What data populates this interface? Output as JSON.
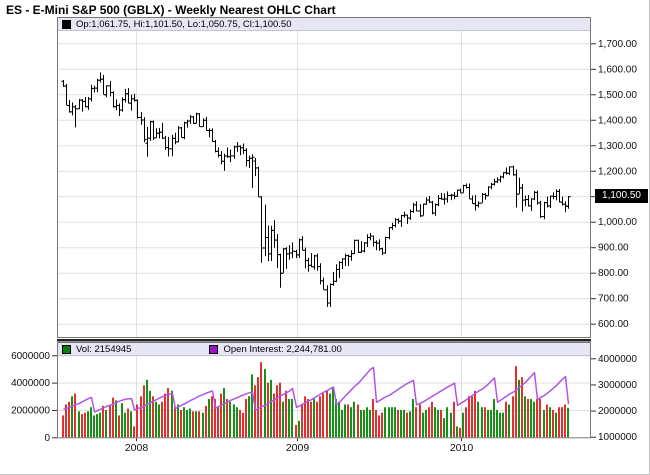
{
  "app": {
    "title": "ES - E-Mini S&P 500 (GBLX) - Weekly Nearest OHLC Chart"
  },
  "price_panel": {
    "legend": "Op:1,061.75, Hi:1,101.50, Lo:1,050.75, Cl:1,100.50",
    "legend_swatch_color": "#000000",
    "last_price_label": "1,100.50",
    "last_price_value": 1100.5,
    "y_ticks": [
      {
        "value": 1700,
        "label": "1,700.00"
      },
      {
        "value": 1600,
        "label": "1,600.00"
      },
      {
        "value": 1500,
        "label": "1,500.00"
      },
      {
        "value": 1400,
        "label": "1,400.00"
      },
      {
        "value": 1300,
        "label": "1,300.00"
      },
      {
        "value": 1200,
        "label": "1,200.00"
      },
      {
        "value": 1000,
        "label": "1,000.00"
      },
      {
        "value": 900,
        "label": "900.00"
      },
      {
        "value": 800,
        "label": "800.00"
      },
      {
        "value": 700,
        "label": "700.00"
      },
      {
        "value": 600,
        "label": "600.00"
      }
    ],
    "grid_values": [
      600,
      700,
      800,
      900,
      1000,
      1100,
      1200,
      1300,
      1400,
      1500,
      1600,
      1700
    ]
  },
  "volume_panel": {
    "vol_legend": "Vol: 2154945",
    "vol_swatch_color": "#0a7d0a",
    "oi_legend": "Open Interest: 2,244,781.00",
    "oi_swatch_color": "#9b12cc",
    "left_ticks": [
      {
        "value": 6,
        "label": "6000000"
      },
      {
        "value": 4,
        "label": "4000000"
      },
      {
        "value": 2,
        "label": "2000000"
      },
      {
        "value": 0,
        "label": "0"
      }
    ],
    "right_ticks": [
      {
        "value": 4,
        "label": "4000000"
      },
      {
        "value": 3,
        "label": "3000000"
      },
      {
        "value": 2,
        "label": "2000000"
      },
      {
        "value": 1,
        "label": "1000000"
      }
    ]
  },
  "x_axis": {
    "year_labels": [
      "2008",
      "2009",
      "2010"
    ],
    "year_start_indices": [
      24,
      76,
      129
    ]
  },
  "colors": {
    "ohlc_bar": "#000000",
    "up_volume": "#169016",
    "down_volume": "#e23030",
    "open_interest_line": "#b155e6",
    "grid": "#e0e0e0",
    "panel_border": "#777777",
    "separator": "#222222",
    "axis_text": "#111111",
    "legend_bg": "#e6e6f5"
  },
  "chart_data": {
    "type": "ohlc",
    "symbol": "ES",
    "interval": "weekly",
    "title": "ES - E-Mini S&P 500 (GBLX) - Weekly Nearest OHLC Chart",
    "price_ylim": [
      544,
      1752
    ],
    "volume_ylim": [
      0,
      6000000
    ],
    "open_interest_ylim": [
      980000,
      4120000
    ],
    "x_range_years": [
      "mid-2007",
      "Sep-2010"
    ],
    "legend_last_bar": {
      "open": 1061.75,
      "high": 1101.5,
      "low": 1050.75,
      "close": 1100.5,
      "volume": 2154945,
      "open_interest": 2244781.0
    },
    "columns": [
      "open",
      "high",
      "low",
      "close",
      "volume_millions",
      "open_interest_millions"
    ],
    "weeks": [
      [
        1553,
        1556,
        1529,
        1534,
        1.6,
        2.05
      ],
      [
        1534,
        1541,
        1458,
        1458,
        2.4,
        2.08
      ],
      [
        1458,
        1478,
        1428,
        1433,
        2.6,
        2.12
      ],
      [
        1433,
        1468,
        1417,
        1453,
        3.0,
        2.17
      ],
      [
        1452,
        1458,
        1370,
        1445,
        3.2,
        2.22
      ],
      [
        1445,
        1482,
        1442,
        1479,
        1.9,
        2.28
      ],
      [
        1479,
        1481,
        1432,
        1474,
        1.7,
        2.34
      ],
      [
        1474,
        1489,
        1449,
        1453,
        1.8,
        2.4
      ],
      [
        1453,
        1490,
        1439,
        1484,
        1.9,
        2.46
      ],
      [
        1484,
        1538,
        1471,
        1525,
        2.2,
        2.5
      ],
      [
        1525,
        1534,
        1507,
        1526,
        1.6,
        1.95
      ],
      [
        1526,
        1561,
        1508,
        1557,
        1.7,
        2.0
      ],
      [
        1557,
        1586,
        1546,
        1561,
        1.8,
        2.05
      ],
      [
        1561,
        1576,
        1500,
        1500,
        2.3,
        2.1
      ],
      [
        1500,
        1535,
        1489,
        1535,
        2.0,
        2.16
      ],
      [
        1535,
        1552,
        1492,
        1509,
        2.3,
        2.21
      ],
      [
        1509,
        1512,
        1448,
        1453,
        2.9,
        2.26
      ],
      [
        1453,
        1480,
        1438,
        1458,
        2.7,
        2.31
      ],
      [
        1458,
        1464,
        1415,
        1440,
        1.6,
        2.36
      ],
      [
        1440,
        1488,
        1432,
        1481,
        2.5,
        2.4
      ],
      [
        1481,
        1521,
        1468,
        1504,
        1.8,
        2.43
      ],
      [
        1504,
        1524,
        1465,
        1467,
        2.1,
        2.45
      ],
      [
        1467,
        1498,
        1436,
        1484,
        1.9,
        2.46
      ],
      [
        1484,
        1502,
        1471,
        1478,
        0.8,
        2.02
      ],
      [
        1478,
        1480,
        1405,
        1411,
        2.4,
        2.07
      ],
      [
        1411,
        1430,
        1380,
        1401,
        3.0,
        2.12
      ],
      [
        1401,
        1410,
        1312,
        1325,
        3.8,
        2.18
      ],
      [
        1310,
        1372,
        1255,
        1330,
        4.2,
        2.24
      ],
      [
        1330,
        1396,
        1317,
        1395,
        3.4,
        2.3
      ],
      [
        1394,
        1397,
        1320,
        1331,
        3.0,
        2.36
      ],
      [
        1331,
        1367,
        1330,
        1349,
        2.6,
        2.42
      ],
      [
        1349,
        1368,
        1327,
        1353,
        2.4,
        2.48
      ],
      [
        1353,
        1388,
        1325,
        1330,
        2.6,
        2.53
      ],
      [
        1330,
        1337,
        1282,
        1293,
        3.2,
        2.58
      ],
      [
        1293,
        1333,
        1256,
        1288,
        3.6,
        2.62
      ],
      [
        1288,
        1341,
        1257,
        1329,
        3.4,
        2.65
      ],
      [
        1329,
        1349,
        1304,
        1315,
        2.2,
        2.08
      ],
      [
        1315,
        1375,
        1312,
        1370,
        2.4,
        2.14
      ],
      [
        1370,
        1372,
        1331,
        1332,
        2.0,
        2.2
      ],
      [
        1332,
        1392,
        1324,
        1390,
        2.2,
        2.26
      ],
      [
        1390,
        1400,
        1369,
        1397,
        2.0,
        2.32
      ],
      [
        1397,
        1418,
        1384,
        1413,
        2.1,
        2.38
      ],
      [
        1413,
        1415,
        1384,
        1388,
        1.9,
        2.44
      ],
      [
        1388,
        1428,
        1386,
        1425,
        1.9,
        2.5
      ],
      [
        1425,
        1426,
        1373,
        1375,
        1.9,
        2.56
      ],
      [
        1375,
        1406,
        1373,
        1400,
        1.8,
        2.62
      ],
      [
        1400,
        1412,
        1358,
        1360,
        2.3,
        2.67
      ],
      [
        1360,
        1366,
        1331,
        1360,
        2.8,
        2.71
      ],
      [
        1360,
        1366,
        1314,
        1317,
        3.0,
        2.75
      ],
      [
        1317,
        1321,
        1272,
        1278,
        2.8,
        2.1
      ],
      [
        1278,
        1292,
        1252,
        1262,
        2.2,
        2.15
      ],
      [
        1262,
        1277,
        1225,
        1239,
        3.2,
        2.21
      ],
      [
        1239,
        1267,
        1200,
        1260,
        3.6,
        2.27
      ],
      [
        1260,
        1291,
        1251,
        1257,
        2.8,
        2.33
      ],
      [
        1257,
        1284,
        1234,
        1260,
        2.6,
        2.39
      ],
      [
        1260,
        1298,
        1247,
        1296,
        2.4,
        2.45
      ],
      [
        1296,
        1313,
        1274,
        1298,
        2.2,
        2.5
      ],
      [
        1298,
        1300,
        1261,
        1292,
        2.0,
        2.55
      ],
      [
        1292,
        1307,
        1265,
        1282,
        1.8,
        2.6
      ],
      [
        1282,
        1288,
        1217,
        1242,
        2.8,
        2.64
      ],
      [
        1242,
        1259,
        1211,
        1251,
        3.0,
        2.68
      ],
      [
        1251,
        1265,
        1133,
        1255,
        4.6,
        2.7
      ],
      [
        1240,
        1250,
        1179,
        1213,
        3.8,
        2.02
      ],
      [
        1213,
        1215,
        1098,
        1099,
        4.4,
        2.08
      ],
      [
        1099,
        1101,
        839,
        899,
        5.5,
        2.14
      ],
      [
        899,
        1067,
        865,
        940,
        5.0,
        2.21
      ],
      [
        940,
        985,
        845,
        876,
        4.0,
        2.28
      ],
      [
        876,
        984,
        846,
        968,
        4.2,
        2.35
      ],
      [
        968,
        1007,
        898,
        930,
        3.2,
        2.42
      ],
      [
        930,
        952,
        818,
        873,
        3.8,
        2.49
      ],
      [
        873,
        875,
        741,
        800,
        4.0,
        2.56
      ],
      [
        800,
        896,
        800,
        896,
        2.6,
        2.62
      ],
      [
        896,
        900,
        815,
        876,
        3.4,
        2.68
      ],
      [
        876,
        908,
        851,
        879,
        2.8,
        2.75
      ],
      [
        879,
        919,
        857,
        887,
        2.8,
        2.85
      ],
      [
        885,
        890,
        857,
        872,
        0.9,
        2.12
      ],
      [
        872,
        934,
        858,
        931,
        1.2,
        2.18
      ],
      [
        931,
        943,
        888,
        890,
        2.4,
        2.24
      ],
      [
        890,
        899,
        817,
        850,
        3.0,
        2.3
      ],
      [
        850,
        858,
        804,
        831,
        2.8,
        2.36
      ],
      [
        831,
        877,
        823,
        825,
        2.6,
        2.42
      ],
      [
        825,
        870,
        812,
        868,
        2.8,
        2.49
      ],
      [
        868,
        875,
        808,
        826,
        2.6,
        2.56
      ],
      [
        826,
        837,
        754,
        770,
        3.0,
        2.63
      ],
      [
        770,
        780,
        734,
        735,
        3.2,
        2.7
      ],
      [
        735,
        751,
        666,
        683,
        3.4,
        2.77
      ],
      [
        683,
        758,
        666,
        756,
        3.2,
        2.84
      ],
      [
        756,
        803,
        749,
        768,
        3.6,
        2.9
      ],
      [
        768,
        833,
        763,
        815,
        2.8,
        2.22
      ],
      [
        815,
        845,
        779,
        842,
        2.6,
        2.32
      ],
      [
        842,
        856,
        814,
        856,
        2.0,
        2.44
      ],
      [
        856,
        875,
        826,
        869,
        2.4,
        2.56
      ],
      [
        869,
        871,
        826,
        866,
        2.4,
        2.68
      ],
      [
        866,
        888,
        847,
        877,
        2.2,
        2.8
      ],
      [
        877,
        930,
        874,
        929,
        2.6,
        2.92
      ],
      [
        929,
        930,
        878,
        882,
        2.4,
        3.05
      ],
      [
        882,
        924,
        879,
        887,
        2.0,
        3.18
      ],
      [
        887,
        920,
        880,
        919,
        2.0,
        3.32
      ],
      [
        919,
        951,
        901,
        940,
        2.2,
        3.45
      ],
      [
        940,
        956,
        927,
        946,
        2.0,
        3.58
      ],
      [
        946,
        946,
        903,
        921,
        2.8,
        3.65
      ],
      [
        921,
        927,
        888,
        918,
        2.0,
        2.32
      ],
      [
        918,
        931,
        886,
        896,
        1.6,
        2.38
      ],
      [
        896,
        898,
        869,
        879,
        1.8,
        2.45
      ],
      [
        879,
        941,
        875,
        940,
        2.2,
        2.52
      ],
      [
        940,
        979,
        932,
        979,
        2.2,
        2.59
      ],
      [
        979,
        996,
        968,
        987,
        2.2,
        2.66
      ],
      [
        987,
        1014,
        978,
        1010,
        2.2,
        2.74
      ],
      [
        1010,
        1013,
        992,
        1004,
        2.0,
        2.82
      ],
      [
        1004,
        1027,
        980,
        1026,
        2.0,
        2.9
      ],
      [
        1026,
        1039,
        1016,
        1028,
        2.0,
        2.97
      ],
      [
        1028,
        1028,
        991,
        1016,
        1.8,
        3.04
      ],
      [
        1016,
        1048,
        1008,
        1042,
        1.9,
        3.1
      ],
      [
        1042,
        1074,
        1035,
        1068,
        2.8,
        3.15
      ],
      [
        1068,
        1080,
        1041,
        1044,
        2.2,
        2.22
      ],
      [
        1044,
        1069,
        1019,
        1025,
        2.4,
        2.28
      ],
      [
        1025,
        1071,
        1025,
        1071,
        1.8,
        2.34
      ],
      [
        1071,
        1096,
        1066,
        1087,
        2.0,
        2.41
      ],
      [
        1087,
        1101,
        1074,
        1079,
        2.2,
        2.48
      ],
      [
        1079,
        1082,
        1029,
        1036,
        2.6,
        2.55
      ],
      [
        1036,
        1071,
        1023,
        1069,
        2.2,
        2.62
      ],
      [
        1069,
        1105,
        1061,
        1093,
        2.0,
        2.69
      ],
      [
        1093,
        1113,
        1086,
        1091,
        2.0,
        2.76
      ],
      [
        1090,
        1111,
        1067,
        1091,
        1.4,
        2.83
      ],
      [
        1091,
        1119,
        1075,
        1105,
        2.2,
        2.9
      ],
      [
        1105,
        1110,
        1085,
        1106,
        1.8,
        2.98
      ],
      [
        1106,
        1116,
        1088,
        1102,
        2.6,
        3.05
      ],
      [
        1102,
        1126,
        1098,
        1126,
        0.8,
        2.2
      ],
      [
        1126,
        1130,
        1114,
        1115,
        0.7,
        2.27
      ],
      [
        1115,
        1145,
        1114,
        1144,
        1.8,
        2.34
      ],
      [
        1144,
        1150,
        1131,
        1136,
        2.2,
        2.42
      ],
      [
        1136,
        1150,
        1090,
        1091,
        3.0,
        2.5
      ],
      [
        1091,
        1103,
        1071,
        1073,
        3.0,
        2.58
      ],
      [
        1073,
        1105,
        1044,
        1066,
        3.4,
        2.66
      ],
      [
        1066,
        1080,
        1056,
        1075,
        2.6,
        2.74
      ],
      [
        1075,
        1112,
        1075,
        1109,
        2.2,
        2.83
      ],
      [
        1109,
        1112,
        1086,
        1104,
        2.2,
        2.92
      ],
      [
        1104,
        1139,
        1101,
        1138,
        2.0,
        3.02
      ],
      [
        1138,
        1153,
        1128,
        1149,
        2.0,
        3.14
      ],
      [
        1149,
        1169,
        1142,
        1159,
        2.8,
        3.25
      ],
      [
        1159,
        1174,
        1152,
        1166,
        2.0,
        2.32
      ],
      [
        1166,
        1181,
        1154,
        1178,
        1.8,
        2.39
      ],
      [
        1178,
        1194,
        1170,
        1194,
        1.8,
        2.47
      ],
      [
        1194,
        1213,
        1186,
        1192,
        2.6,
        2.55
      ],
      [
        1192,
        1217,
        1183,
        1217,
        2.4,
        2.63
      ],
      [
        1217,
        1220,
        1181,
        1186,
        3.0,
        2.71
      ],
      [
        1186,
        1205,
        1056,
        1110,
        5.2,
        2.8
      ],
      [
        1110,
        1173,
        1110,
        1135,
        4.2,
        2.89
      ],
      [
        1135,
        1148,
        1040,
        1087,
        4.4,
        2.98
      ],
      [
        1087,
        1103,
        1061,
        1089,
        3.0,
        3.08
      ],
      [
        1089,
        1105,
        1060,
        1064,
        2.8,
        3.2
      ],
      [
        1064,
        1092,
        1042,
        1091,
        2.8,
        3.33
      ],
      [
        1091,
        1121,
        1085,
        1117,
        2.6,
        3.45
      ],
      [
        1117,
        1122,
        1067,
        1076,
        2.8,
        2.42
      ],
      [
        1076,
        1082,
        1015,
        1022,
        2.8,
        2.5
      ],
      [
        1022,
        1078,
        1010,
        1077,
        2.0,
        2.58
      ],
      [
        1077,
        1099,
        1056,
        1064,
        2.4,
        2.67
      ],
      [
        1064,
        1103,
        1054,
        1102,
        2.2,
        2.76
      ],
      [
        1102,
        1115,
        1088,
        1101,
        2.0,
        2.86
      ],
      [
        1101,
        1127,
        1084,
        1121,
        1.8,
        2.96
      ],
      [
        1121,
        1128,
        1076,
        1079,
        2.2,
        3.08
      ],
      [
        1079,
        1099,
        1063,
        1071,
        2.2,
        3.2
      ],
      [
        1071,
        1081,
        1037,
        1064,
        2.4,
        3.3
      ],
      [
        1061.75,
        1101.5,
        1050.75,
        1100.5,
        2.154945,
        2.244781
      ]
    ]
  }
}
